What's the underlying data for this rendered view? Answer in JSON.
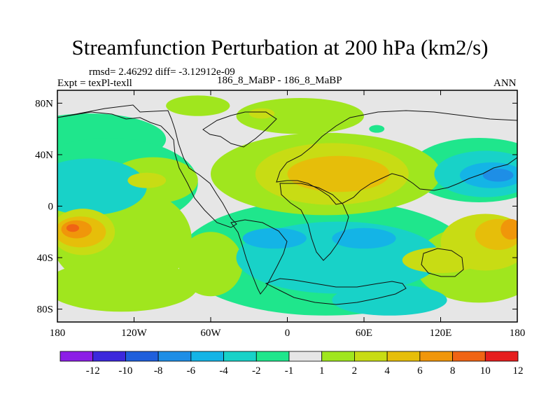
{
  "header": {
    "title": "Streamfunction Perturbation at 200 hPa (km2/s)",
    "stats": "rmsd= 2.46292 diff= -3.12912e-09",
    "experiment": "Expt = texPl-texll",
    "case": "186_8_MaBP - 186_8_MaBP",
    "season": "ANN"
  },
  "chart_data": {
    "type": "heatmap",
    "title": "Streamfunction Perturbation at 200 hPa (km2/s)",
    "x_ticks": [
      "180",
      "120W",
      "60W",
      "0",
      "60E",
      "120E",
      "180"
    ],
    "y_ticks": [
      "80N",
      "40N",
      "0",
      "40S",
      "80S"
    ],
    "xlim": [
      -180,
      180
    ],
    "ylim": [
      -90,
      90
    ],
    "colorbar": {
      "labels": [
        "-12",
        "-10",
        "-8",
        "-6",
        "-4",
        "-2",
        "-1",
        "1",
        "2",
        "4",
        "6",
        "8",
        "10",
        "12"
      ],
      "colors": [
        "#8c1ee6",
        "#3c28dc",
        "#1f5fdc",
        "#1e8ee6",
        "#14b4e6",
        "#18d2c8",
        "#1fe68c",
        "#e6e6e6",
        "#a0e61e",
        "#c8dc14",
        "#e6be0a",
        "#f0960a",
        "#f06414",
        "#e61e1e"
      ]
    },
    "regions": [
      {
        "level": -1,
        "cx": -155,
        "cy": 52,
        "rx": 60,
        "ry": 20
      },
      {
        "level": -1,
        "cx": -140,
        "cy": 18,
        "rx": 70,
        "ry": 35
      },
      {
        "level": -2,
        "cx": -155,
        "cy": 15,
        "rx": 45,
        "ry": 22
      },
      {
        "level": -1,
        "cx": 30,
        "cy": -40,
        "rx": 115,
        "ry": 45
      },
      {
        "level": -2,
        "cx": 40,
        "cy": -40,
        "rx": 80,
        "ry": 28
      },
      {
        "level": -4,
        "cx": 60,
        "cy": -25,
        "rx": 25,
        "ry": 8
      },
      {
        "level": -4,
        "cx": -10,
        "cy": -25,
        "rx": 25,
        "ry": 8
      },
      {
        "level": -2,
        "cx": 80,
        "cy": -73,
        "rx": 45,
        "ry": 12
      },
      {
        "level": -1,
        "cx": 150,
        "cy": 28,
        "rx": 55,
        "ry": 25
      },
      {
        "level": -2,
        "cx": 155,
        "cy": 25,
        "rx": 40,
        "ry": 18
      },
      {
        "level": -4,
        "cx": 160,
        "cy": 24,
        "rx": 25,
        "ry": 10
      },
      {
        "level": -6,
        "cx": 165,
        "cy": 24,
        "rx": 12,
        "ry": 5
      },
      {
        "level": -1,
        "cx": 70,
        "cy": 60,
        "rx": 6,
        "ry": 3
      },
      {
        "level": 1,
        "cx": -70,
        "cy": 78,
        "rx": 25,
        "ry": 8
      },
      {
        "level": 1,
        "cx": 10,
        "cy": 70,
        "rx": 50,
        "ry": 14
      },
      {
        "level": 2,
        "cx": -20,
        "cy": 72,
        "rx": 10,
        "ry": 4
      },
      {
        "level": 1,
        "cx": 30,
        "cy": 25,
        "rx": 90,
        "ry": 32
      },
      {
        "level": 2,
        "cx": 35,
        "cy": 25,
        "rx": 60,
        "ry": 24
      },
      {
        "level": 4,
        "cx": 40,
        "cy": 25,
        "rx": 40,
        "ry": 14
      },
      {
        "level": 1,
        "cx": -105,
        "cy": 20,
        "rx": 35,
        "ry": 18
      },
      {
        "level": 2,
        "cx": -110,
        "cy": 20,
        "rx": 15,
        "ry": 6
      },
      {
        "level": 1,
        "cx": -130,
        "cy": -25,
        "rx": 55,
        "ry": 40
      },
      {
        "level": 1,
        "cx": -155,
        "cy": -20,
        "rx": 40,
        "ry": 25
      },
      {
        "level": 2,
        "cx": -160,
        "cy": -20,
        "rx": 25,
        "ry": 18
      },
      {
        "level": 4,
        "cx": -162,
        "cy": -20,
        "rx": 20,
        "ry": 12
      },
      {
        "level": 6,
        "cx": -165,
        "cy": -18,
        "rx": 12,
        "ry": 7
      },
      {
        "level": 8,
        "cx": -168,
        "cy": -17,
        "rx": 5,
        "ry": 3
      },
      {
        "level": 1,
        "cx": -130,
        "cy": -62,
        "rx": 60,
        "ry": 20
      },
      {
        "level": 1,
        "cx": -60,
        "cy": -45,
        "rx": 25,
        "ry": 25
      },
      {
        "level": 1,
        "cx": 150,
        "cy": -45,
        "rx": 50,
        "ry": 30
      },
      {
        "level": 2,
        "cx": 155,
        "cy": -28,
        "rx": 35,
        "ry": 22
      },
      {
        "level": 4,
        "cx": 165,
        "cy": -22,
        "rx": 18,
        "ry": 12
      },
      {
        "level": 6,
        "cx": 175,
        "cy": -18,
        "rx": 8,
        "ry": 8
      },
      {
        "level": 2,
        "cx": 120,
        "cy": -42,
        "rx": 30,
        "ry": 10
      }
    ]
  }
}
